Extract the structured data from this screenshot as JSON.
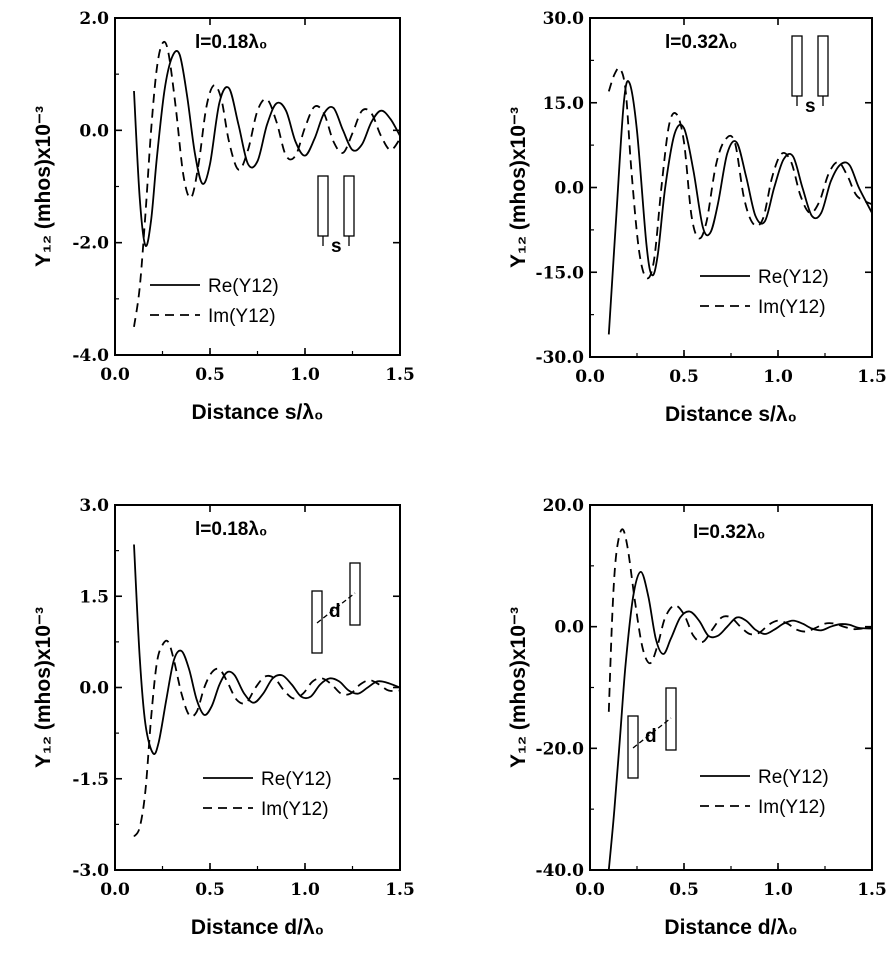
{
  "chart_data": [
    {
      "type": "line",
      "id": "tl",
      "annotation": "l=0.18λ₀",
      "xlabel": "Distance s/λ₀",
      "ylabel": "Y₁₂  (mhos)x10⁻³",
      "xlim": [
        0.0,
        1.5
      ],
      "ylim": [
        -4.0,
        2.0
      ],
      "xticks": [
        "0.0",
        "0.5",
        "1.0",
        "1.5"
      ],
      "yticks": [
        "2.0",
        "0.0",
        "-2.0",
        "-4.0"
      ],
      "legend": {
        "placement": "lower-right"
      },
      "inset": "side-by-side dipoles separated by s",
      "inset_label": "s",
      "series": [
        {
          "name": "Re(Y12)",
          "style": "solid",
          "x": [
            0.1,
            0.13,
            0.16,
            0.19,
            0.22,
            0.26,
            0.3,
            0.34,
            0.38,
            0.42,
            0.46,
            0.5,
            0.55,
            0.6,
            0.65,
            0.7,
            0.75,
            0.8,
            0.85,
            0.9,
            0.95,
            1.0,
            1.05,
            1.1,
            1.15,
            1.2,
            1.25,
            1.3,
            1.35,
            1.4,
            1.45,
            1.5
          ],
          "y": [
            0.7,
            -1.2,
            -2.05,
            -1.6,
            -0.5,
            0.7,
            1.3,
            1.35,
            0.6,
            -0.4,
            -0.95,
            -0.6,
            0.5,
            0.75,
            0.1,
            -0.6,
            -0.55,
            0.1,
            0.48,
            0.35,
            -0.2,
            -0.45,
            -0.15,
            0.3,
            0.4,
            0.0,
            -0.35,
            -0.25,
            0.15,
            0.35,
            0.2,
            -0.1
          ]
        },
        {
          "name": "Im(Y12)",
          "style": "dashed",
          "x": [
            0.1,
            0.13,
            0.16,
            0.19,
            0.22,
            0.25,
            0.28,
            0.32,
            0.36,
            0.4,
            0.44,
            0.48,
            0.52,
            0.56,
            0.6,
            0.65,
            0.7,
            0.75,
            0.8,
            0.85,
            0.9,
            0.95,
            1.0,
            1.05,
            1.1,
            1.15,
            1.2,
            1.25,
            1.3,
            1.35,
            1.4,
            1.45,
            1.5
          ],
          "y": [
            -3.5,
            -2.8,
            -1.5,
            0.0,
            1.1,
            1.55,
            1.4,
            0.4,
            -0.8,
            -1.2,
            -0.6,
            0.4,
            0.8,
            0.55,
            -0.2,
            -0.7,
            -0.35,
            0.35,
            0.55,
            0.15,
            -0.45,
            -0.45,
            0.05,
            0.42,
            0.3,
            -0.2,
            -0.4,
            -0.05,
            0.35,
            0.3,
            -0.1,
            -0.35,
            -0.15
          ]
        }
      ]
    },
    {
      "type": "line",
      "id": "tr",
      "annotation": "l=0.32λ₀",
      "xlabel": "Distance s/λ₀",
      "ylabel": "Y₁₂  (mhos)x10⁻³",
      "xlim": [
        0.0,
        1.5
      ],
      "ylim": [
        -30.0,
        30.0
      ],
      "xticks": [
        "0.0",
        "0.5",
        "1.0",
        "1.5"
      ],
      "yticks": [
        "30.0",
        "15.0",
        "0.0",
        "-15.0",
        "-30.0"
      ],
      "legend": {
        "placement": "lower-right"
      },
      "inset": "side-by-side dipoles separated by s",
      "inset_label": "s",
      "series": [
        {
          "name": "Re(Y12)",
          "style": "solid",
          "x": [
            0.1,
            0.14,
            0.18,
            0.21,
            0.25,
            0.3,
            0.33,
            0.36,
            0.4,
            0.45,
            0.5,
            0.55,
            0.6,
            0.64,
            0.68,
            0.73,
            0.78,
            0.83,
            0.88,
            0.93,
            0.98,
            1.03,
            1.08,
            1.13,
            1.18,
            1.23,
            1.28,
            1.33,
            1.38,
            1.43,
            1.5
          ],
          "y": [
            -26,
            -5,
            15,
            18.5,
            10,
            -10,
            -15.5,
            -12,
            0,
            9.5,
            10.5,
            3,
            -7,
            -8,
            -3,
            6,
            8,
            2,
            -5,
            -6,
            0,
            5,
            5.5,
            0,
            -5,
            -4.5,
            1,
            4,
            4,
            0,
            -4.5
          ]
        },
        {
          "name": "Im(Y12)",
          "style": "dashed",
          "x": [
            0.1,
            0.13,
            0.16,
            0.19,
            0.22,
            0.26,
            0.3,
            0.34,
            0.38,
            0.42,
            0.46,
            0.5,
            0.54,
            0.58,
            0.62,
            0.67,
            0.72,
            0.77,
            0.82,
            0.87,
            0.92,
            0.97,
            1.02,
            1.07,
            1.12,
            1.17,
            1.22,
            1.27,
            1.32,
            1.37,
            1.42,
            1.5
          ],
          "y": [
            17,
            20,
            21,
            17,
            3,
            -11,
            -16,
            -13,
            0,
            11,
            13,
            8,
            -5,
            -9,
            -6,
            4,
            8.5,
            8,
            -2,
            -6.5,
            -5.5,
            2,
            6,
            4.5,
            -1.5,
            -4.5,
            -2.5,
            2.5,
            4.5,
            2,
            -1.5,
            -3
          ]
        }
      ]
    },
    {
      "type": "line",
      "id": "bl",
      "annotation": "l=0.18λ₀",
      "xlabel": "Distance d/λ₀",
      "ylabel": "Y₁₂  (mhos)x10⁻³",
      "xlim": [
        0.0,
        1.5
      ],
      "ylim": [
        -3.0,
        3.0
      ],
      "xticks": [
        "0.0",
        "0.5",
        "1.0",
        "1.5"
      ],
      "yticks": [
        "3.0",
        "1.5",
        "0.0",
        "-1.5",
        "-3.0"
      ],
      "legend": {
        "placement": "lower-right"
      },
      "inset": "echelon dipoles separated by d",
      "inset_label": "d",
      "series": [
        {
          "name": "Re(Y12)",
          "style": "solid",
          "x": [
            0.1,
            0.13,
            0.16,
            0.2,
            0.23,
            0.27,
            0.31,
            0.35,
            0.39,
            0.43,
            0.47,
            0.51,
            0.55,
            0.59,
            0.63,
            0.68,
            0.73,
            0.78,
            0.83,
            0.88,
            0.93,
            0.98,
            1.03,
            1.08,
            1.13,
            1.18,
            1.23,
            1.28,
            1.33,
            1.38,
            1.43,
            1.5
          ],
          "y": [
            2.35,
            0.5,
            -0.6,
            -1.08,
            -0.9,
            -0.2,
            0.45,
            0.6,
            0.3,
            -0.2,
            -0.45,
            -0.3,
            0.05,
            0.25,
            0.2,
            -0.1,
            -0.25,
            -0.1,
            0.15,
            0.2,
            0.05,
            -0.15,
            -0.15,
            0.05,
            0.15,
            0.1,
            -0.05,
            -0.1,
            0.0,
            0.1,
            0.08,
            0.0
          ]
        },
        {
          "name": "Im(Y12)",
          "style": "dashed",
          "x": [
            0.1,
            0.13,
            0.16,
            0.19,
            0.22,
            0.25,
            0.28,
            0.31,
            0.35,
            0.39,
            0.43,
            0.47,
            0.51,
            0.55,
            0.59,
            0.64,
            0.69,
            0.74,
            0.79,
            0.84,
            0.89,
            0.94,
            0.99,
            1.04,
            1.09,
            1.14,
            1.19,
            1.24,
            1.29,
            1.34,
            1.39,
            1.44,
            1.5
          ],
          "y": [
            -2.45,
            -2.3,
            -1.7,
            -0.5,
            0.4,
            0.7,
            0.75,
            0.45,
            -0.1,
            -0.45,
            -0.4,
            0.0,
            0.25,
            0.3,
            0.1,
            -0.2,
            -0.25,
            0.0,
            0.18,
            0.15,
            -0.05,
            -0.18,
            -0.1,
            0.1,
            0.15,
            0.05,
            -0.1,
            -0.1,
            0.05,
            0.12,
            0.05,
            -0.05,
            -0.05
          ]
        }
      ]
    },
    {
      "type": "line",
      "id": "br",
      "annotation": "l=0.32λ₀",
      "xlabel": "Distance d/λ₀",
      "ylabel": "Y₁₂  (mhos)x10⁻³",
      "xlim": [
        0.0,
        1.5
      ],
      "ylim": [
        -40.0,
        20.0
      ],
      "xticks": [
        "0.0",
        "0.5",
        "1.0",
        "1.5"
      ],
      "yticks": [
        "20.0",
        "0.0",
        "-20.0",
        "-40.0"
      ],
      "legend": {
        "placement": "lower-right"
      },
      "inset": "echelon dipoles separated by d",
      "inset_label": "d",
      "series": [
        {
          "name": "Re(Y12)",
          "style": "solid",
          "x": [
            0.1,
            0.13,
            0.16,
            0.19,
            0.23,
            0.27,
            0.31,
            0.35,
            0.39,
            0.43,
            0.48,
            0.53,
            0.58,
            0.63,
            0.68,
            0.73,
            0.78,
            0.83,
            0.88,
            0.93,
            0.98,
            1.03,
            1.08,
            1.13,
            1.18,
            1.23,
            1.28,
            1.33,
            1.38,
            1.43,
            1.5
          ],
          "y": [
            -40,
            -30,
            -18,
            -6,
            5,
            9,
            5,
            -2,
            -4.5,
            -2,
            1.5,
            2.5,
            1,
            -1.5,
            -1.5,
            0,
            1.5,
            1,
            -0.5,
            -1.2,
            -0.5,
            0.5,
            1,
            0.5,
            -0.3,
            -0.6,
            0,
            0.4,
            0.3,
            -0.2,
            -0.3
          ]
        },
        {
          "name": "Im(Y12)",
          "style": "dashed",
          "x": [
            0.1,
            0.12,
            0.14,
            0.17,
            0.2,
            0.24,
            0.28,
            0.32,
            0.36,
            0.4,
            0.45,
            0.5,
            0.55,
            0.6,
            0.65,
            0.7,
            0.75,
            0.8,
            0.85,
            0.9,
            0.95,
            1.0,
            1.05,
            1.1,
            1.15,
            1.2,
            1.25,
            1.3,
            1.35,
            1.4,
            1.45,
            1.5
          ],
          "y": [
            -14,
            3,
            12,
            16,
            13,
            4,
            -3.5,
            -6,
            -3,
            1.5,
            3.5,
            2,
            -1.5,
            -2.5,
            -0.5,
            1.5,
            1.5,
            0,
            -1.2,
            -1,
            0.3,
            1,
            0.5,
            -0.5,
            -0.8,
            -0.2,
            0.5,
            0.5,
            0,
            -0.4,
            -0.3,
            0
          ]
        }
      ]
    }
  ]
}
